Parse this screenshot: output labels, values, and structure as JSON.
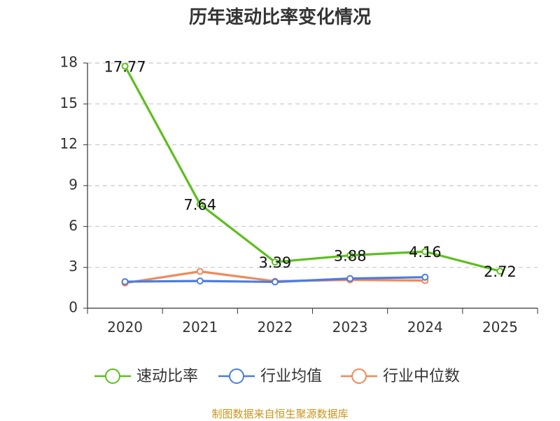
{
  "chart_data": {
    "type": "line",
    "title": "历年速动比率变化情况",
    "categories": [
      "2020",
      "2021",
      "2022",
      "2023",
      "2024",
      "2025"
    ],
    "ylim": [
      0,
      18
    ],
    "yticks": [
      0,
      3,
      6,
      9,
      12,
      15,
      18
    ],
    "grid": true,
    "legend_position": "bottom",
    "series": [
      {
        "name": "速动比率",
        "color": "#5cbf1e",
        "labels": true,
        "values": [
          17.77,
          7.64,
          3.39,
          3.88,
          4.16,
          2.72
        ]
      },
      {
        "name": "行业均值",
        "color": "#4a7de2",
        "labels": false,
        "values": [
          1.95,
          2.0,
          1.93,
          2.18,
          2.28,
          null
        ]
      },
      {
        "name": "行业中位数",
        "color": "#f0895a",
        "labels": false,
        "values": [
          1.85,
          2.7,
          1.98,
          2.08,
          2.03,
          null
        ]
      }
    ]
  },
  "source": "制图数据来自恒生聚源数据库"
}
